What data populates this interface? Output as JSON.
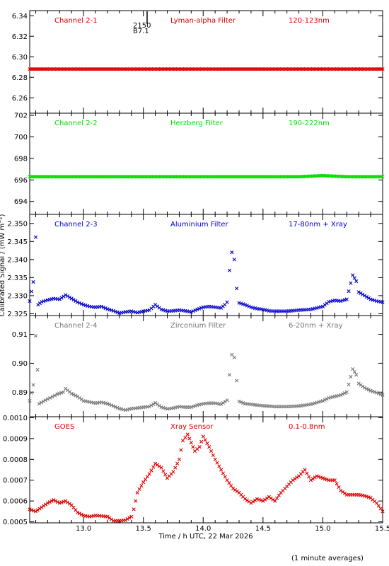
{
  "chart_data": {
    "type": "scatter",
    "xlabel": "Time / h UTC, 22 Mar 2026",
    "ylabel": "Calibrated Signal / (mW m⁻²)",
    "footnote": "(1 minute averages)",
    "marker_annotation": {
      "x": 13.5,
      "lines": [
        "2150",
        "B7.1"
      ]
    },
    "xlim": [
      12.55,
      15.5
    ],
    "xticks": [
      13.0,
      13.5,
      14.0,
      14.5,
      15.0,
      15.5
    ],
    "xtick_labels": [
      "13.0",
      "13.5",
      "14.0",
      "14.5",
      "15.0",
      "15.5"
    ],
    "panels": [
      {
        "name": "Channel 2-1",
        "filter": "Lyman-alpha Filter",
        "range": "120-123nm",
        "color": "#dd0000",
        "marker": "x",
        "ylim": [
          6.245,
          6.345
        ],
        "yticks": [
          6.26,
          6.28,
          6.3,
          6.32,
          6.34
        ],
        "ytick_labels": [
          "6.26",
          "6.28",
          "6.30",
          "6.32",
          "6.34"
        ],
        "points": [
          [
            12.55,
            6.288
          ],
          [
            12.8,
            6.288
          ],
          [
            13.0,
            6.288
          ],
          [
            13.2,
            6.288
          ],
          [
            13.4,
            6.288
          ],
          [
            13.6,
            6.288
          ],
          [
            13.8,
            6.288
          ],
          [
            14.0,
            6.288
          ],
          [
            14.2,
            6.288
          ],
          [
            14.4,
            6.288
          ],
          [
            14.6,
            6.288
          ],
          [
            14.8,
            6.288
          ],
          [
            15.0,
            6.288
          ],
          [
            15.2,
            6.288
          ],
          [
            15.5,
            6.288
          ]
        ]
      },
      {
        "name": "Channel 2-2",
        "filter": "Herzberg Filter",
        "range": "190-222nm",
        "color": "#00dd00",
        "marker": "x",
        "ylim": [
          692.8,
          702.2
        ],
        "yticks": [
          694,
          696,
          698,
          700,
          702
        ],
        "ytick_labels": [
          "694",
          "696",
          "698",
          "700",
          "702"
        ],
        "points": [
          [
            12.55,
            696.3
          ],
          [
            12.8,
            696.3
          ],
          [
            13.0,
            696.3
          ],
          [
            13.2,
            696.3
          ],
          [
            13.4,
            696.3
          ],
          [
            13.6,
            696.3
          ],
          [
            13.8,
            696.3
          ],
          [
            14.0,
            696.3
          ],
          [
            14.2,
            696.3
          ],
          [
            14.4,
            696.3
          ],
          [
            14.6,
            696.3
          ],
          [
            14.8,
            696.3
          ],
          [
            15.0,
            696.4
          ],
          [
            15.2,
            696.3
          ],
          [
            15.5,
            696.3
          ]
        ]
      },
      {
        "name": "Channel 2-3",
        "filter": "Aluminium Filter",
        "range": "17-80nm + Xray",
        "color": "#0000cc",
        "marker": "x",
        "ylim": [
          2.3245,
          2.3525
        ],
        "yticks": [
          2.325,
          2.33,
          2.335,
          2.34,
          2.345,
          2.35
        ],
        "ytick_labels": [
          "2.325",
          "2.330",
          "2.335",
          "2.340",
          "2.345",
          "2.350"
        ],
        "points": [
          [
            12.55,
            2.3285
          ],
          [
            12.58,
            2.3338
          ],
          [
            12.6,
            2.3462
          ],
          [
            12.62,
            2.3275
          ],
          [
            12.65,
            2.3283
          ],
          [
            12.7,
            2.3288
          ],
          [
            12.75,
            2.3292
          ],
          [
            12.8,
            2.329
          ],
          [
            12.85,
            2.3302
          ],
          [
            12.9,
            2.3292
          ],
          [
            12.95,
            2.3282
          ],
          [
            13.0,
            2.3275
          ],
          [
            13.05,
            2.327
          ],
          [
            13.1,
            2.3268
          ],
          [
            13.15,
            2.327
          ],
          [
            13.2,
            2.3263
          ],
          [
            13.25,
            2.3258
          ],
          [
            13.3,
            2.3252
          ],
          [
            13.35,
            2.3255
          ],
          [
            13.4,
            2.3257
          ],
          [
            13.45,
            2.3253
          ],
          [
            13.5,
            2.3257
          ],
          [
            13.55,
            2.326
          ],
          [
            13.6,
            2.3275
          ],
          [
            13.65,
            2.3262
          ],
          [
            13.7,
            2.3257
          ],
          [
            13.75,
            2.3258
          ],
          [
            13.8,
            2.326
          ],
          [
            13.85,
            2.3258
          ],
          [
            13.9,
            2.3255
          ],
          [
            13.95,
            2.3262
          ],
          [
            14.0,
            2.3268
          ],
          [
            14.05,
            2.327
          ],
          [
            14.1,
            2.3268
          ],
          [
            14.15,
            2.3266
          ],
          [
            14.18,
            2.3275
          ],
          [
            14.2,
            2.3282
          ],
          [
            14.22,
            2.337
          ],
          [
            14.24,
            2.342
          ],
          [
            14.26,
            2.34
          ],
          [
            14.28,
            2.332
          ],
          [
            14.3,
            2.328
          ],
          [
            14.35,
            2.3275
          ],
          [
            14.4,
            2.3268
          ],
          [
            14.45,
            2.3264
          ],
          [
            14.5,
            2.3262
          ],
          [
            14.55,
            2.3258
          ],
          [
            14.6,
            2.3257
          ],
          [
            14.7,
            2.3257
          ],
          [
            14.8,
            2.326
          ],
          [
            14.9,
            2.3262
          ],
          [
            15.0,
            2.327
          ],
          [
            15.05,
            2.3283
          ],
          [
            15.1,
            2.3287
          ],
          [
            15.15,
            2.3285
          ],
          [
            15.2,
            2.329
          ],
          [
            15.25,
            2.3357
          ],
          [
            15.28,
            2.334
          ],
          [
            15.3,
            2.331
          ],
          [
            15.35,
            2.33
          ],
          [
            15.4,
            2.329
          ],
          [
            15.45,
            2.3285
          ],
          [
            15.5,
            2.3282
          ]
        ]
      },
      {
        "name": "Channel 2-4",
        "filter": "Zirconium Filter",
        "range": "6-20nm + Xray",
        "color": "#777777",
        "marker": "x",
        "ylim": [
          0.8815,
          0.9165
        ],
        "yticks": [
          0.89,
          0.9,
          0.91
        ],
        "ytick_labels": [
          "0.89",
          "0.90",
          "0.91"
        ],
        "points": [
          [
            12.55,
            0.887
          ],
          [
            12.58,
            0.8925
          ],
          [
            12.6,
            0.9095
          ],
          [
            12.63,
            0.886
          ],
          [
            12.68,
            0.8872
          ],
          [
            12.72,
            0.888
          ],
          [
            12.78,
            0.8893
          ],
          [
            12.83,
            0.89
          ],
          [
            12.85,
            0.8912
          ],
          [
            12.9,
            0.8895
          ],
          [
            12.95,
            0.8885
          ],
          [
            13.0,
            0.887
          ],
          [
            13.05,
            0.8866
          ],
          [
            13.1,
            0.8862
          ],
          [
            13.15,
            0.8865
          ],
          [
            13.2,
            0.886
          ],
          [
            13.25,
            0.8852
          ],
          [
            13.3,
            0.8843
          ],
          [
            13.35,
            0.8838
          ],
          [
            13.4,
            0.8843
          ],
          [
            13.45,
            0.8845
          ],
          [
            13.5,
            0.8848
          ],
          [
            13.55,
            0.885
          ],
          [
            13.6,
            0.8863
          ],
          [
            13.65,
            0.8848
          ],
          [
            13.7,
            0.8842
          ],
          [
            13.75,
            0.8845
          ],
          [
            13.8,
            0.885
          ],
          [
            13.85,
            0.8848
          ],
          [
            13.9,
            0.8848
          ],
          [
            13.95,
            0.8855
          ],
          [
            14.0,
            0.886
          ],
          [
            14.05,
            0.8862
          ],
          [
            14.1,
            0.8862
          ],
          [
            14.15,
            0.8858
          ],
          [
            14.2,
            0.8872
          ],
          [
            14.22,
            0.896
          ],
          [
            14.24,
            0.903
          ],
          [
            14.26,
            0.902
          ],
          [
            14.28,
            0.894
          ],
          [
            14.3,
            0.8868
          ],
          [
            14.35,
            0.886
          ],
          [
            14.4,
            0.8858
          ],
          [
            14.45,
            0.8855
          ],
          [
            14.5,
            0.8853
          ],
          [
            14.6,
            0.885
          ],
          [
            14.7,
            0.885
          ],
          [
            14.8,
            0.8852
          ],
          [
            14.9,
            0.8858
          ],
          [
            15.0,
            0.887
          ],
          [
            15.05,
            0.888
          ],
          [
            15.1,
            0.8885
          ],
          [
            15.15,
            0.889
          ],
          [
            15.2,
            0.89
          ],
          [
            15.25,
            0.898
          ],
          [
            15.28,
            0.896
          ],
          [
            15.3,
            0.893
          ],
          [
            15.35,
            0.8915
          ],
          [
            15.4,
            0.8905
          ],
          [
            15.45,
            0.8898
          ],
          [
            15.5,
            0.889
          ]
        ]
      },
      {
        "name": "GOES",
        "filter": "Xray Sensor",
        "range": "0.1-0.8nm",
        "color": "#dd0000",
        "marker": "x",
        "ylim": [
          0.000495,
          0.001005
        ],
        "yticks": [
          0.0005,
          0.0006,
          0.0007,
          0.0008,
          0.0009,
          0.001
        ],
        "ytick_labels": [
          "0.0005",
          "0.0006",
          "0.0007",
          "0.0008",
          "0.0009",
          "0.0010"
        ],
        "points": [
          [
            12.55,
            0.00056
          ],
          [
            12.6,
            0.00055
          ],
          [
            12.65,
            0.00057
          ],
          [
            12.7,
            0.00059
          ],
          [
            12.75,
            0.000605
          ],
          [
            12.8,
            0.00059
          ],
          [
            12.85,
            0.0006
          ],
          [
            12.9,
            0.00058
          ],
          [
            12.95,
            0.000545
          ],
          [
            13.0,
            0.00053
          ],
          [
            13.05,
            0.000525
          ],
          [
            13.1,
            0.00053
          ],
          [
            13.15,
            0.000528
          ],
          [
            13.2,
            0.000525
          ],
          [
            13.25,
            0.000505
          ],
          [
            13.3,
            0.000505
          ],
          [
            13.35,
            0.000508
          ],
          [
            13.4,
            0.000525
          ],
          [
            13.42,
            0.00056
          ],
          [
            13.45,
            0.00064
          ],
          [
            13.5,
            0.00069
          ],
          [
            13.55,
            0.00073
          ],
          [
            13.6,
            0.00078
          ],
          [
            13.65,
            0.00076
          ],
          [
            13.7,
            0.00071
          ],
          [
            13.75,
            0.00074
          ],
          [
            13.8,
            0.0008
          ],
          [
            13.83,
            0.00089
          ],
          [
            13.87,
            0.00092
          ],
          [
            13.9,
            0.00088
          ],
          [
            13.93,
            0.00084
          ],
          [
            13.97,
            0.00086
          ],
          [
            14.0,
            0.00091
          ],
          [
            14.05,
            0.00086
          ],
          [
            14.1,
            0.0008
          ],
          [
            14.15,
            0.00075
          ],
          [
            14.2,
            0.0007
          ],
          [
            14.25,
            0.00066
          ],
          [
            14.3,
            0.00064
          ],
          [
            14.35,
            0.00061
          ],
          [
            14.4,
            0.00059
          ],
          [
            14.45,
            0.00061
          ],
          [
            14.5,
            0.0006
          ],
          [
            14.55,
            0.00062
          ],
          [
            14.6,
            0.0006
          ],
          [
            14.65,
            0.00064
          ],
          [
            14.7,
            0.00067
          ],
          [
            14.75,
            0.0007
          ],
          [
            14.8,
            0.00072
          ],
          [
            14.85,
            0.00075
          ],
          [
            14.9,
            0.0007
          ],
          [
            14.95,
            0.00072
          ],
          [
            15.0,
            0.00071
          ],
          [
            15.05,
            0.0007
          ],
          [
            15.1,
            0.0007
          ],
          [
            15.15,
            0.00065
          ],
          [
            15.2,
            0.00063
          ],
          [
            15.25,
            0.00063
          ],
          [
            15.3,
            0.00063
          ],
          [
            15.35,
            0.000625
          ],
          [
            15.4,
            0.000615
          ],
          [
            15.45,
            0.00059
          ],
          [
            15.5,
            0.00055
          ]
        ]
      }
    ]
  }
}
